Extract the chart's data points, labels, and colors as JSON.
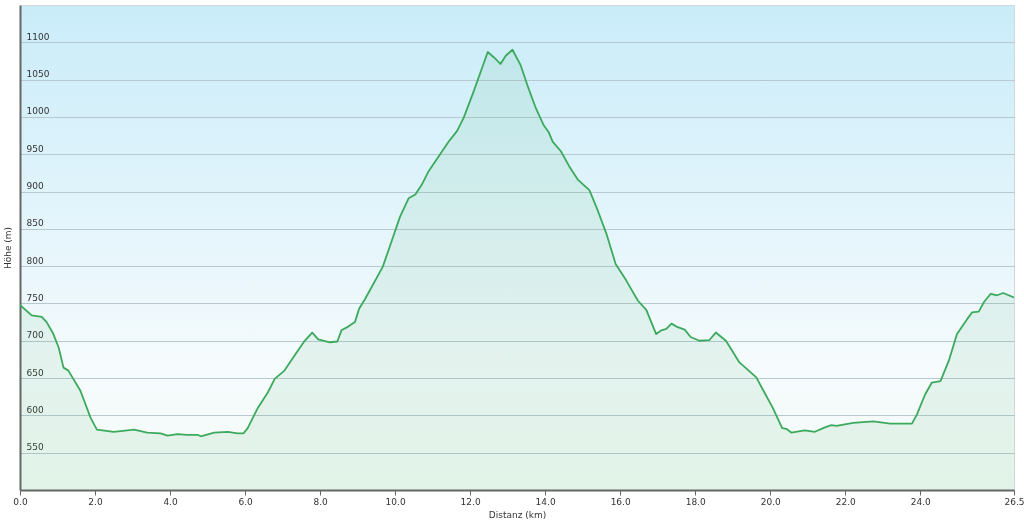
{
  "chart_data": {
    "type": "area",
    "xlabel": "Distanz (km)",
    "ylabel": "Höhe (m)",
    "x": [
      0,
      0.31,
      0.58,
      0.71,
      0.89,
      1.03,
      1.16,
      1.29,
      1.61,
      1.88,
      2.05,
      2.5,
      3.04,
      3.39,
      3.75,
      3.93,
      4.2,
      4.46,
      4.73,
      4.82,
      5.18,
      5.54,
      5.8,
      5.96,
      6.07,
      6.34,
      6.61,
      6.79,
      7.05,
      7.37,
      7.59,
      7.79,
      7.95,
      8.26,
      8.46,
      8.57,
      8.75,
      8.93,
      9.04,
      9.2,
      9.67,
      9.87,
      10.13,
      10.36,
      10.54,
      10.71,
      10.89,
      11.16,
      11.43,
      11.65,
      11.83,
      12.1,
      12.47,
      12.63,
      12.81,
      12.95,
      13.13,
      13.35,
      13.53,
      13.75,
      13.95,
      14.1,
      14.2,
      14.42,
      14.64,
      14.87,
      15.18,
      15.4,
      15.63,
      15.88,
      16.16,
      16.47,
      16.7,
      16.96,
      17.1,
      17.23,
      17.37,
      17.5,
      17.72,
      17.88,
      18.11,
      18.38,
      18.55,
      18.82,
      19.18,
      19.63,
      19.8,
      20.07,
      20.32,
      20.43,
      20.56,
      20.92,
      21.19,
      21.46,
      21.63,
      21.77,
      22.21,
      22.75,
      23.2,
      23.78,
      23.91,
      24.13,
      24.31,
      24.54,
      24.76,
      24.98,
      25.25,
      25.38,
      25.56,
      25.7,
      25.88,
      26.05,
      26.21,
      26.5
    ],
    "series": [
      {
        "color": "#3caa5c",
        "values": [
          748,
          734,
          732,
          725,
          709,
          691,
          664,
          660,
          633,
          597,
          581,
          578,
          581,
          577,
          576,
          573,
          575,
          574,
          574,
          572,
          577,
          578,
          576,
          576,
          583,
          610,
          631,
          649,
          660,
          684,
          700,
          711,
          702,
          698,
          699,
          714,
          719,
          725,
          743,
          756,
          799,
          828,
          866,
          891,
          896,
          909,
          927,
          947,
          967,
          981,
          999,
          1035,
          1087,
          1080,
          1071,
          1082,
          1090,
          1069,
          1042,
          1012,
          990,
          979,
          967,
          954,
          934,
          916,
          902,
          875,
          844,
          803,
          781,
          754,
          741,
          709,
          714,
          716,
          723,
          719,
          715,
          705,
          700,
          701,
          711,
          700,
          671,
          651,
          635,
          610,
          583,
          582,
          577,
          580,
          578,
          584,
          587,
          586,
          590,
          592,
          589,
          589,
          601,
          628,
          644,
          646,
          673,
          709,
          729,
          738,
          739,
          752,
          763,
          761,
          764,
          758
        ]
      }
    ],
    "xlim": [
      0,
      26.5
    ],
    "ylim": [
      500,
      1150
    ],
    "xticks": [
      {
        "value": 0,
        "label": "0.0"
      },
      {
        "value": 2,
        "label": "2.0"
      },
      {
        "value": 4,
        "label": "4.0"
      },
      {
        "value": 6,
        "label": "6.0"
      },
      {
        "value": 8,
        "label": "8.0"
      },
      {
        "value": 10,
        "label": "10.0"
      },
      {
        "value": 12,
        "label": "12.0"
      },
      {
        "value": 14,
        "label": "14.0"
      },
      {
        "value": 16,
        "label": "16.0"
      },
      {
        "value": 18,
        "label": "18.0"
      },
      {
        "value": 20,
        "label": "20.0"
      },
      {
        "value": 22,
        "label": "22.0"
      },
      {
        "value": 24,
        "label": "24.0"
      },
      26.5
    ],
    "yticks": [
      550,
      600,
      650,
      700,
      750,
      800,
      850,
      900,
      950,
      1000,
      1050,
      1100
    ],
    "grid": "y"
  }
}
